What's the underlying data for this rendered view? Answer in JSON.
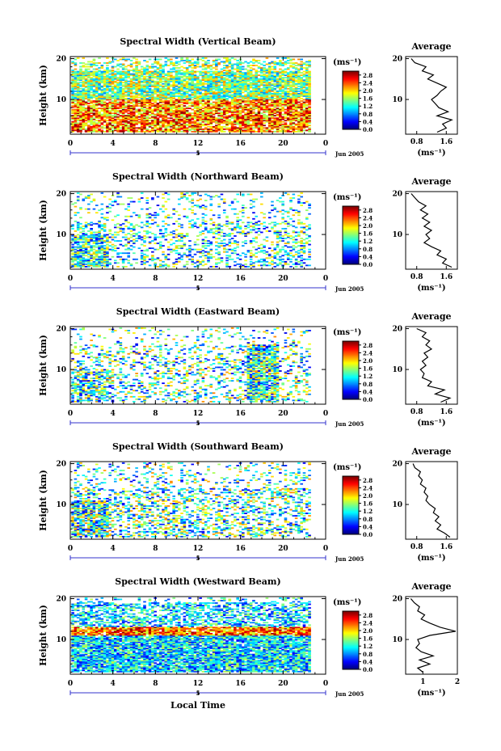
{
  "chart_data": [
    {
      "type": "heatmap",
      "title": "Spectral Width (Vertical Beam)",
      "ylabel": "Height (km)",
      "x_ticks": [
        "0",
        "4",
        "8",
        "12",
        "16",
        "20",
        "0"
      ],
      "y_ticks": [
        "20",
        "10"
      ],
      "date_tick": "5",
      "date_label": "Jun 2005",
      "xlim": [
        0,
        24
      ],
      "ylim": [
        1.5,
        20.5
      ],
      "colorbar": {
        "unit_label": "(ms⁻¹)",
        "ticks": [
          "2.8",
          "2.4",
          "2.0",
          "1.6",
          "1.2",
          "0.8",
          "0.4",
          "0.0"
        ],
        "range": [
          0,
          3.0
        ]
      },
      "average": {
        "title": "Average",
        "xlabel": "(ms⁻¹)",
        "x_ticks": [
          "0.8",
          "1.6"
        ],
        "y_ticks": [
          "20",
          "10"
        ],
        "xlim": [
          0.5,
          1.9
        ],
        "profile": [
          [
            1.35,
            2
          ],
          [
            1.6,
            3
          ],
          [
            1.5,
            4
          ],
          [
            1.75,
            5
          ],
          [
            1.35,
            6
          ],
          [
            1.65,
            7
          ],
          [
            1.4,
            8
          ],
          [
            1.3,
            9
          ],
          [
            1.2,
            10
          ],
          [
            1.35,
            11
          ],
          [
            1.45,
            12
          ],
          [
            1.6,
            13
          ],
          [
            1.35,
            14
          ],
          [
            1.1,
            15
          ],
          [
            1.25,
            16
          ],
          [
            0.95,
            17
          ],
          [
            1.05,
            18
          ],
          [
            0.75,
            19
          ],
          [
            0.65,
            20
          ]
        ]
      }
    },
    {
      "type": "heatmap",
      "title": "Spectral Width (Northward Beam)",
      "ylabel": "Height (km)",
      "x_ticks": [
        "0",
        "4",
        "8",
        "12",
        "16",
        "20",
        "0"
      ],
      "y_ticks": [
        "20",
        "10"
      ],
      "date_tick": "5",
      "date_label": "Jun 2005",
      "xlim": [
        0,
        24
      ],
      "ylim": [
        1.5,
        20.5
      ],
      "colorbar": {
        "unit_label": "(ms⁻¹)",
        "ticks": [
          "2.8",
          "2.4",
          "2.0",
          "1.6",
          "1.2",
          "0.8",
          "0.4",
          "0.0"
        ],
        "range": [
          0,
          3.0
        ]
      },
      "average": {
        "title": "Average",
        "xlabel": "(ms⁻¹)",
        "x_ticks": [
          "0.8",
          "1.6"
        ],
        "y_ticks": [
          "20",
          "10"
        ],
        "xlim": [
          0.5,
          1.9
        ],
        "profile": [
          [
            1.75,
            2
          ],
          [
            1.5,
            3
          ],
          [
            1.6,
            4
          ],
          [
            1.35,
            5
          ],
          [
            1.45,
            6
          ],
          [
            1.2,
            7
          ],
          [
            1.0,
            8
          ],
          [
            1.15,
            9
          ],
          [
            1.05,
            10
          ],
          [
            1.2,
            11
          ],
          [
            1.0,
            12
          ],
          [
            1.15,
            13
          ],
          [
            0.95,
            14
          ],
          [
            1.1,
            15
          ],
          [
            0.9,
            16
          ],
          [
            1.05,
            17
          ],
          [
            0.85,
            18
          ],
          [
            0.75,
            19
          ],
          [
            0.65,
            20
          ]
        ]
      }
    },
    {
      "type": "heatmap",
      "title": "Spectral Width (Eastward Beam)",
      "ylabel": "Height (km)",
      "x_ticks": [
        "0",
        "4",
        "8",
        "12",
        "16",
        "20",
        "0"
      ],
      "y_ticks": [
        "20",
        "10"
      ],
      "date_tick": "5",
      "date_label": "Jun 2005",
      "xlim": [
        0,
        24
      ],
      "ylim": [
        1.5,
        20.5
      ],
      "colorbar": {
        "unit_label": "(ms⁻¹)",
        "ticks": [
          "2.8",
          "2.4",
          "2.0",
          "1.6",
          "1.2",
          "0.8",
          "0.4",
          "0.0"
        ],
        "range": [
          0,
          3.0
        ]
      },
      "average": {
        "title": "Average",
        "xlabel": "(ms⁻¹)",
        "x_ticks": [
          "0.8",
          "1.6"
        ],
        "y_ticks": [
          "20",
          "10"
        ],
        "xlim": [
          0.5,
          1.9
        ],
        "profile": [
          [
            1.45,
            2
          ],
          [
            1.7,
            3
          ],
          [
            1.3,
            4
          ],
          [
            1.55,
            5
          ],
          [
            1.1,
            6
          ],
          [
            1.2,
            7
          ],
          [
            0.95,
            8
          ],
          [
            1.0,
            9
          ],
          [
            0.9,
            10
          ],
          [
            1.05,
            11
          ],
          [
            0.95,
            12
          ],
          [
            1.1,
            13
          ],
          [
            1.0,
            14
          ],
          [
            1.2,
            15
          ],
          [
            1.05,
            16
          ],
          [
            1.15,
            17
          ],
          [
            0.95,
            18
          ],
          [
            1.05,
            19
          ],
          [
            0.8,
            20
          ]
        ]
      }
    },
    {
      "type": "heatmap",
      "title": "Spectral Width (Southward Beam)",
      "ylabel": "Height (km)",
      "x_ticks": [
        "0",
        "4",
        "8",
        "12",
        "16",
        "20",
        "0"
      ],
      "y_ticks": [
        "20",
        "10"
      ],
      "date_tick": "5",
      "date_label": "Jun 2005",
      "xlim": [
        0,
        24
      ],
      "ylim": [
        1.5,
        20.5
      ],
      "colorbar": {
        "unit_label": "(ms⁻¹)",
        "ticks": [
          "2.8",
          "2.4",
          "2.0",
          "1.6",
          "1.2",
          "0.8",
          "0.4",
          "0.0"
        ],
        "range": [
          0,
          3.0
        ]
      },
      "average": {
        "title": "Average",
        "xlabel": "(ms⁻¹)",
        "x_ticks": [
          "0.8",
          "1.6"
        ],
        "y_ticks": [
          "20",
          "10"
        ],
        "xlim": [
          0.5,
          1.9
        ],
        "profile": [
          [
            1.7,
            2
          ],
          [
            1.55,
            3
          ],
          [
            1.35,
            4
          ],
          [
            1.45,
            5
          ],
          [
            1.3,
            6
          ],
          [
            1.4,
            7
          ],
          [
            1.25,
            8
          ],
          [
            1.3,
            9
          ],
          [
            1.15,
            10
          ],
          [
            1.05,
            11
          ],
          [
            1.1,
            12
          ],
          [
            1.0,
            13
          ],
          [
            1.05,
            14
          ],
          [
            0.9,
            15
          ],
          [
            0.95,
            16
          ],
          [
            0.85,
            17
          ],
          [
            0.9,
            18
          ],
          [
            0.75,
            19
          ],
          [
            0.7,
            20
          ]
        ]
      }
    },
    {
      "type": "heatmap",
      "title": "Spectral Width (Westward Beam)",
      "ylabel": "Height (km)",
      "xlabel": "Local Time",
      "x_ticks": [
        "0",
        "4",
        "8",
        "12",
        "16",
        "20",
        "0"
      ],
      "y_ticks": [
        "20",
        "10"
      ],
      "date_tick": "5",
      "date_label": "Jun 2005",
      "xlim": [
        0,
        24
      ],
      "ylim": [
        1.5,
        20.5
      ],
      "colorbar": {
        "unit_label": "(ms⁻¹)",
        "ticks": [
          "2.8",
          "2.4",
          "2.0",
          "1.6",
          "1.2",
          "0.8",
          "0.4",
          "0.0"
        ],
        "range": [
          0,
          3.0
        ]
      },
      "average": {
        "title": "Average",
        "xlabel": "(ms⁻¹)",
        "x_ticks": [
          "1",
          "2"
        ],
        "y_ticks": [
          "20",
          "10"
        ],
        "xlim": [
          0.5,
          2.0
        ],
        "profile": [
          [
            1.0,
            2
          ],
          [
            0.85,
            3
          ],
          [
            1.2,
            4
          ],
          [
            0.9,
            5
          ],
          [
            1.3,
            6
          ],
          [
            0.95,
            7
          ],
          [
            0.8,
            8
          ],
          [
            0.9,
            9
          ],
          [
            0.85,
            10
          ],
          [
            1.2,
            11
          ],
          [
            1.95,
            12
          ],
          [
            1.5,
            13
          ],
          [
            1.2,
            14
          ],
          [
            0.95,
            15
          ],
          [
            1.05,
            16
          ],
          [
            0.85,
            17
          ],
          [
            0.9,
            18
          ],
          [
            0.75,
            19
          ],
          [
            0.65,
            20
          ]
        ]
      }
    }
  ]
}
